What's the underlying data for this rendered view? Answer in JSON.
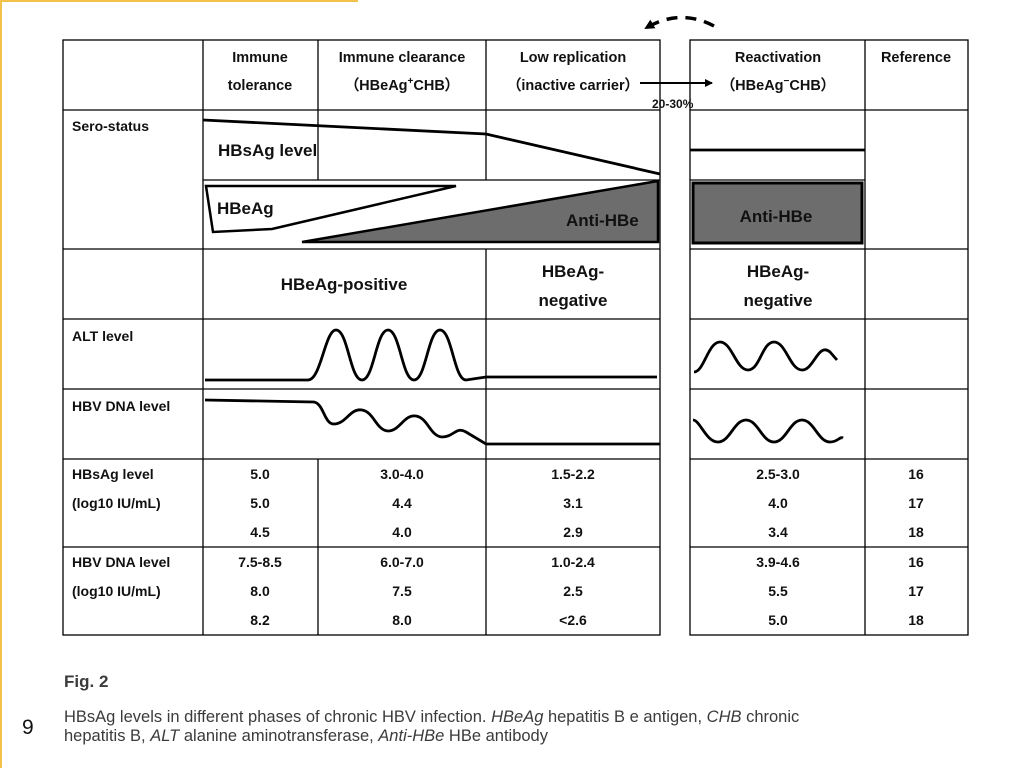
{
  "header": {
    "immune_tolerance": [
      "Immune",
      "tolerance"
    ],
    "immune_clearance": [
      "Immune clearance",
      "（HBeAg",
      "+",
      "CHB）"
    ],
    "low_replication": [
      "Low replication",
      "（inactive carrier）"
    ],
    "reactivation": [
      "Reactivation",
      "（HBeAg",
      "−",
      "CHB）"
    ],
    "reference": "Reference",
    "transition_percent": "20-30%"
  },
  "row_labels": {
    "sero_status": "Sero-status",
    "alt_level": "ALT level",
    "hbv_dna_level": "HBV DNA level"
  },
  "diagram_labels": {
    "hbsag_level": "HBsAg level",
    "hbeag": "HBeAg",
    "anti_hbe_left": "Anti-HBe",
    "anti_hbe_right": "Anti-HBe",
    "hbeag_positive": "HBeAg-positive",
    "hbeag_negative_low": [
      "HBeAg-",
      "negative"
    ],
    "hbeag_negative_react": [
      "HBeAg-",
      "negative"
    ]
  },
  "hbsag_table": {
    "label": [
      "HBsAg level",
      "(log10 IU/mL)"
    ],
    "rows": [
      [
        "5.0",
        "3.0-4.0",
        "1.5-2.2",
        "2.5-3.0",
        "16"
      ],
      [
        "5.0",
        "4.4",
        "3.1",
        "4.0",
        "17"
      ],
      [
        "4.5",
        "4.0",
        "2.9",
        "3.4",
        "18"
      ]
    ]
  },
  "hbvdna_table": {
    "label": [
      "HBV DNA level",
      "(log10 IU/mL)"
    ],
    "rows": [
      [
        "7.5-8.5",
        "6.0-7.0",
        "1.0-2.4",
        "3.9-4.6",
        "16"
      ],
      [
        "8.0",
        "7.5",
        "2.5",
        "5.5",
        "17"
      ],
      [
        "8.2",
        "8.0",
        "<2.6",
        "5.0",
        "18"
      ]
    ]
  },
  "colors": {
    "accent": "#f2c24a",
    "anti_hbe_fill": "#6d6d6d",
    "caption_text": "#3b3b3b"
  },
  "caption": {
    "fig_label": "Fig. 2",
    "line1_a": "HBsAg levels in different phases of chronic HBV infection. ",
    "line1_b": "HBeAg",
    "line1_c": " hepatitis B e antigen, ",
    "line1_d": "CHB",
    "line1_e": " chronic",
    "line2_a": "hepatitis B, ",
    "line2_b": "ALT",
    "line2_c": " alanine aminotransferase, ",
    "line2_d": "Anti-HBe",
    "line2_e": " HBe antibody"
  },
  "page_number": "9"
}
